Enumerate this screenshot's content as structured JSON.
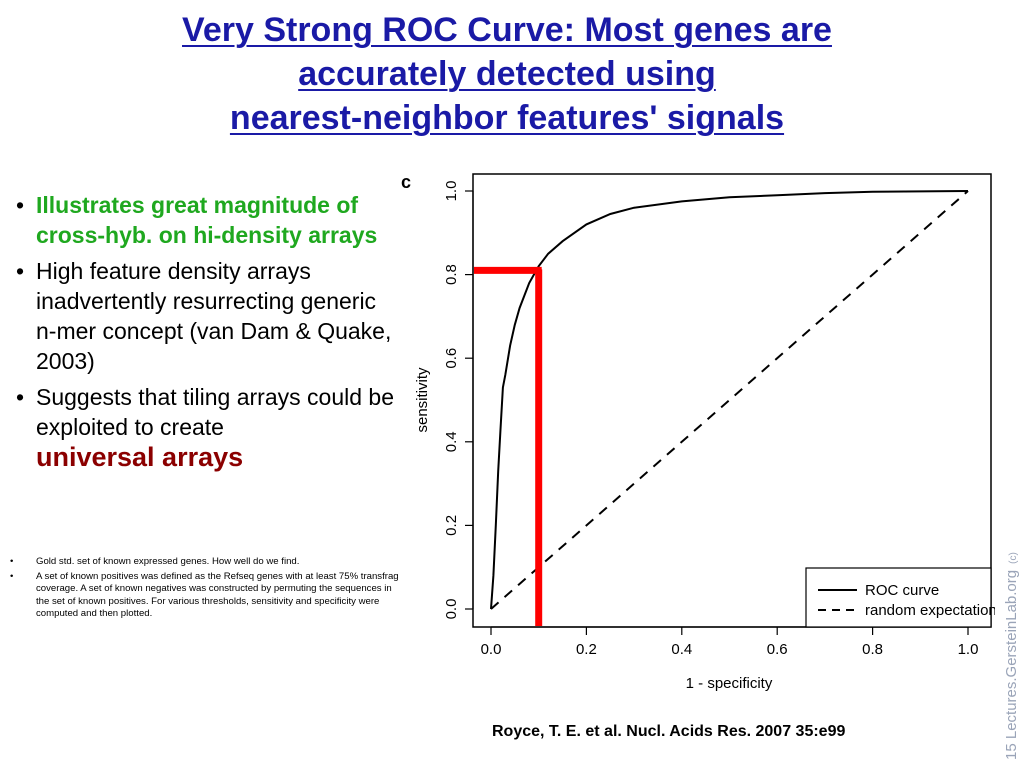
{
  "slide": {
    "title_lines": [
      "Very Strong ROC Curve: Most genes are",
      "accurately detected using",
      "nearest-neighbor features' signals"
    ],
    "bullets": [
      {
        "text": "Illustrates great magnitude of cross-hyb. on hi-density arrays"
      },
      {
        "text": "High feature density arrays inadvertently resurrecting generic n-mer concept (van Dam & Quake, 2003)"
      },
      {
        "text": "Suggests that tiling arrays could be exploited to create",
        "emphasis": "universal arrays"
      }
    ],
    "notes": [
      "Gold std. set of known expressed genes. How well do we find.",
      "A set of known positives was defined as the Refseq genes with at least 75% transfrag coverage. A set of known negatives was constructed by permuting the sequences in the set of known positives. For various thresholds, sensitivity and specificity were computed and then plotted."
    ],
    "citation": "Royce, T. E. et al. Nucl. Acids Res. 2007 35:e99",
    "watermark": "15 Lectures.GersteinLab.org",
    "watermark_c": "(c)",
    "colors": {
      "title": "#1a1aa6",
      "green": "#1fa81f",
      "emphasis": "#8b0000",
      "highlight": "#ff0000"
    }
  },
  "chart_data": {
    "type": "line",
    "panel_label": "c",
    "xlabel": "1 - specificity",
    "ylabel": "sensitivity",
    "xlim": [
      0,
      1
    ],
    "ylim": [
      0,
      1
    ],
    "xticks": [
      "0.0",
      "0.2",
      "0.4",
      "0.6",
      "0.8",
      "1.0"
    ],
    "yticks": [
      "0.0",
      "0.2",
      "0.4",
      "0.6",
      "0.8",
      "1.0"
    ],
    "legend_position": "bottom-right",
    "series": [
      {
        "name": "ROC curve",
        "style": "solid",
        "x": [
          0,
          0.005,
          0.01,
          0.015,
          0.02,
          0.025,
          0.03,
          0.04,
          0.05,
          0.06,
          0.07,
          0.08,
          0.09,
          0.1,
          0.12,
          0.15,
          0.2,
          0.25,
          0.3,
          0.4,
          0.5,
          0.6,
          0.7,
          0.8,
          0.9,
          1.0
        ],
        "y": [
          0,
          0.08,
          0.2,
          0.33,
          0.43,
          0.53,
          0.56,
          0.63,
          0.68,
          0.72,
          0.75,
          0.78,
          0.8,
          0.82,
          0.85,
          0.88,
          0.92,
          0.945,
          0.96,
          0.975,
          0.985,
          0.99,
          0.995,
          0.998,
          0.999,
          1.0
        ]
      },
      {
        "name": "random expectation",
        "style": "dashed",
        "x": [
          0,
          1
        ],
        "y": [
          0,
          1
        ]
      }
    ],
    "highlight": {
      "x": 0.1,
      "y": 0.81
    }
  }
}
